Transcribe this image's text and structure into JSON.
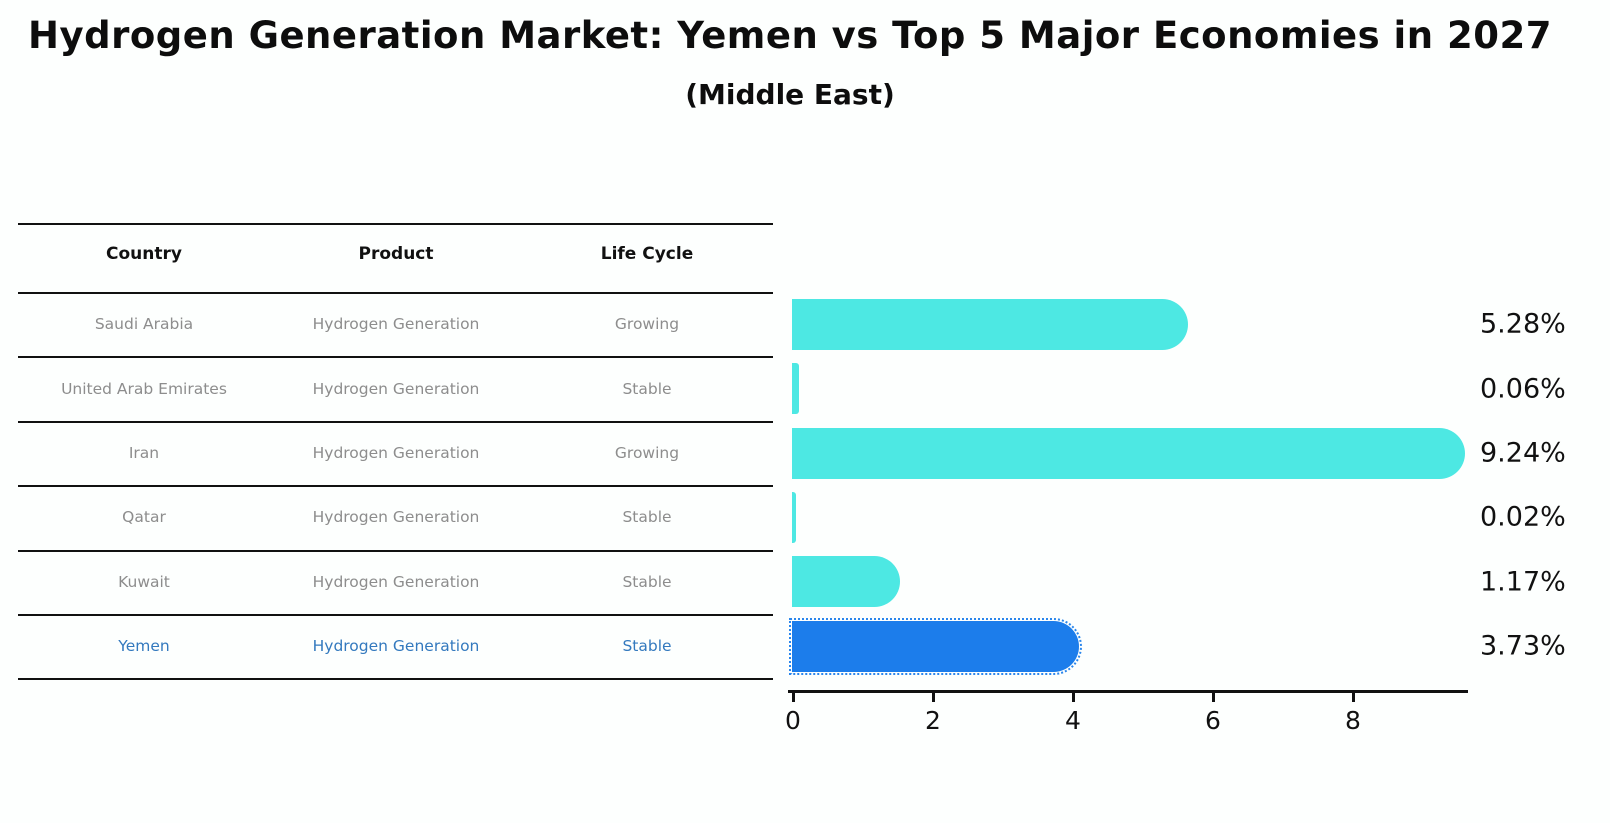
{
  "header": {
    "title": "Hydrogen Generation Market: Yemen vs Top 5 Major Economies in 2027",
    "subtitle": "(Middle East)"
  },
  "table": {
    "headers": [
      "Country",
      "Product",
      "Life Cycle"
    ],
    "rows": [
      {
        "country": "Saudi Arabia",
        "product": "Hydrogen Generation",
        "life_cycle": "Growing",
        "value": 5.28,
        "value_label": "5.28%",
        "highlight": false
      },
      {
        "country": "United Arab Emirates",
        "product": "Hydrogen Generation",
        "life_cycle": "Stable",
        "value": 0.06,
        "value_label": "0.06%",
        "highlight": false
      },
      {
        "country": "Iran",
        "product": "Hydrogen Generation",
        "life_cycle": "Growing",
        "value": 9.24,
        "value_label": "9.24%",
        "highlight": false
      },
      {
        "country": "Qatar",
        "product": "Hydrogen Generation",
        "life_cycle": "Stable",
        "value": 0.02,
        "value_label": "0.02%",
        "highlight": false
      },
      {
        "country": "Kuwait",
        "product": "Hydrogen Generation",
        "life_cycle": "Stable",
        "value": 1.17,
        "value_label": "1.17%",
        "highlight": false
      },
      {
        "country": "Yemen",
        "product": "Hydrogen Generation",
        "life_cycle": "Stable",
        "value": 3.73,
        "value_label": "3.73%",
        "highlight": true
      }
    ]
  },
  "chart_data": {
    "type": "bar",
    "orientation": "horizontal",
    "title": "Hydrogen Generation Market: Yemen vs Top 5 Major Economies in 2027 (Middle East)",
    "categories": [
      "Saudi Arabia",
      "United Arab Emirates",
      "Iran",
      "Qatar",
      "Kuwait",
      "Yemen"
    ],
    "values": [
      5.28,
      0.06,
      9.24,
      0.02,
      1.17,
      3.73
    ],
    "value_labels": [
      "5.28%",
      "0.06%",
      "9.24%",
      "0.02%",
      "1.17%",
      "3.73%"
    ],
    "x_ticks": [
      0,
      2,
      4,
      6,
      8
    ],
    "xlim": [
      0,
      9.66
    ],
    "xlabel": "",
    "ylabel": "",
    "grid": false,
    "legend": false,
    "bar_color": "#4de8e3",
    "highlight_bar_color": "#1c7deb",
    "highlight_category": "Yemen",
    "highlight_text_color": "#3379be",
    "axis_color": "#111111",
    "table_text_color": "#8d8d8d"
  }
}
